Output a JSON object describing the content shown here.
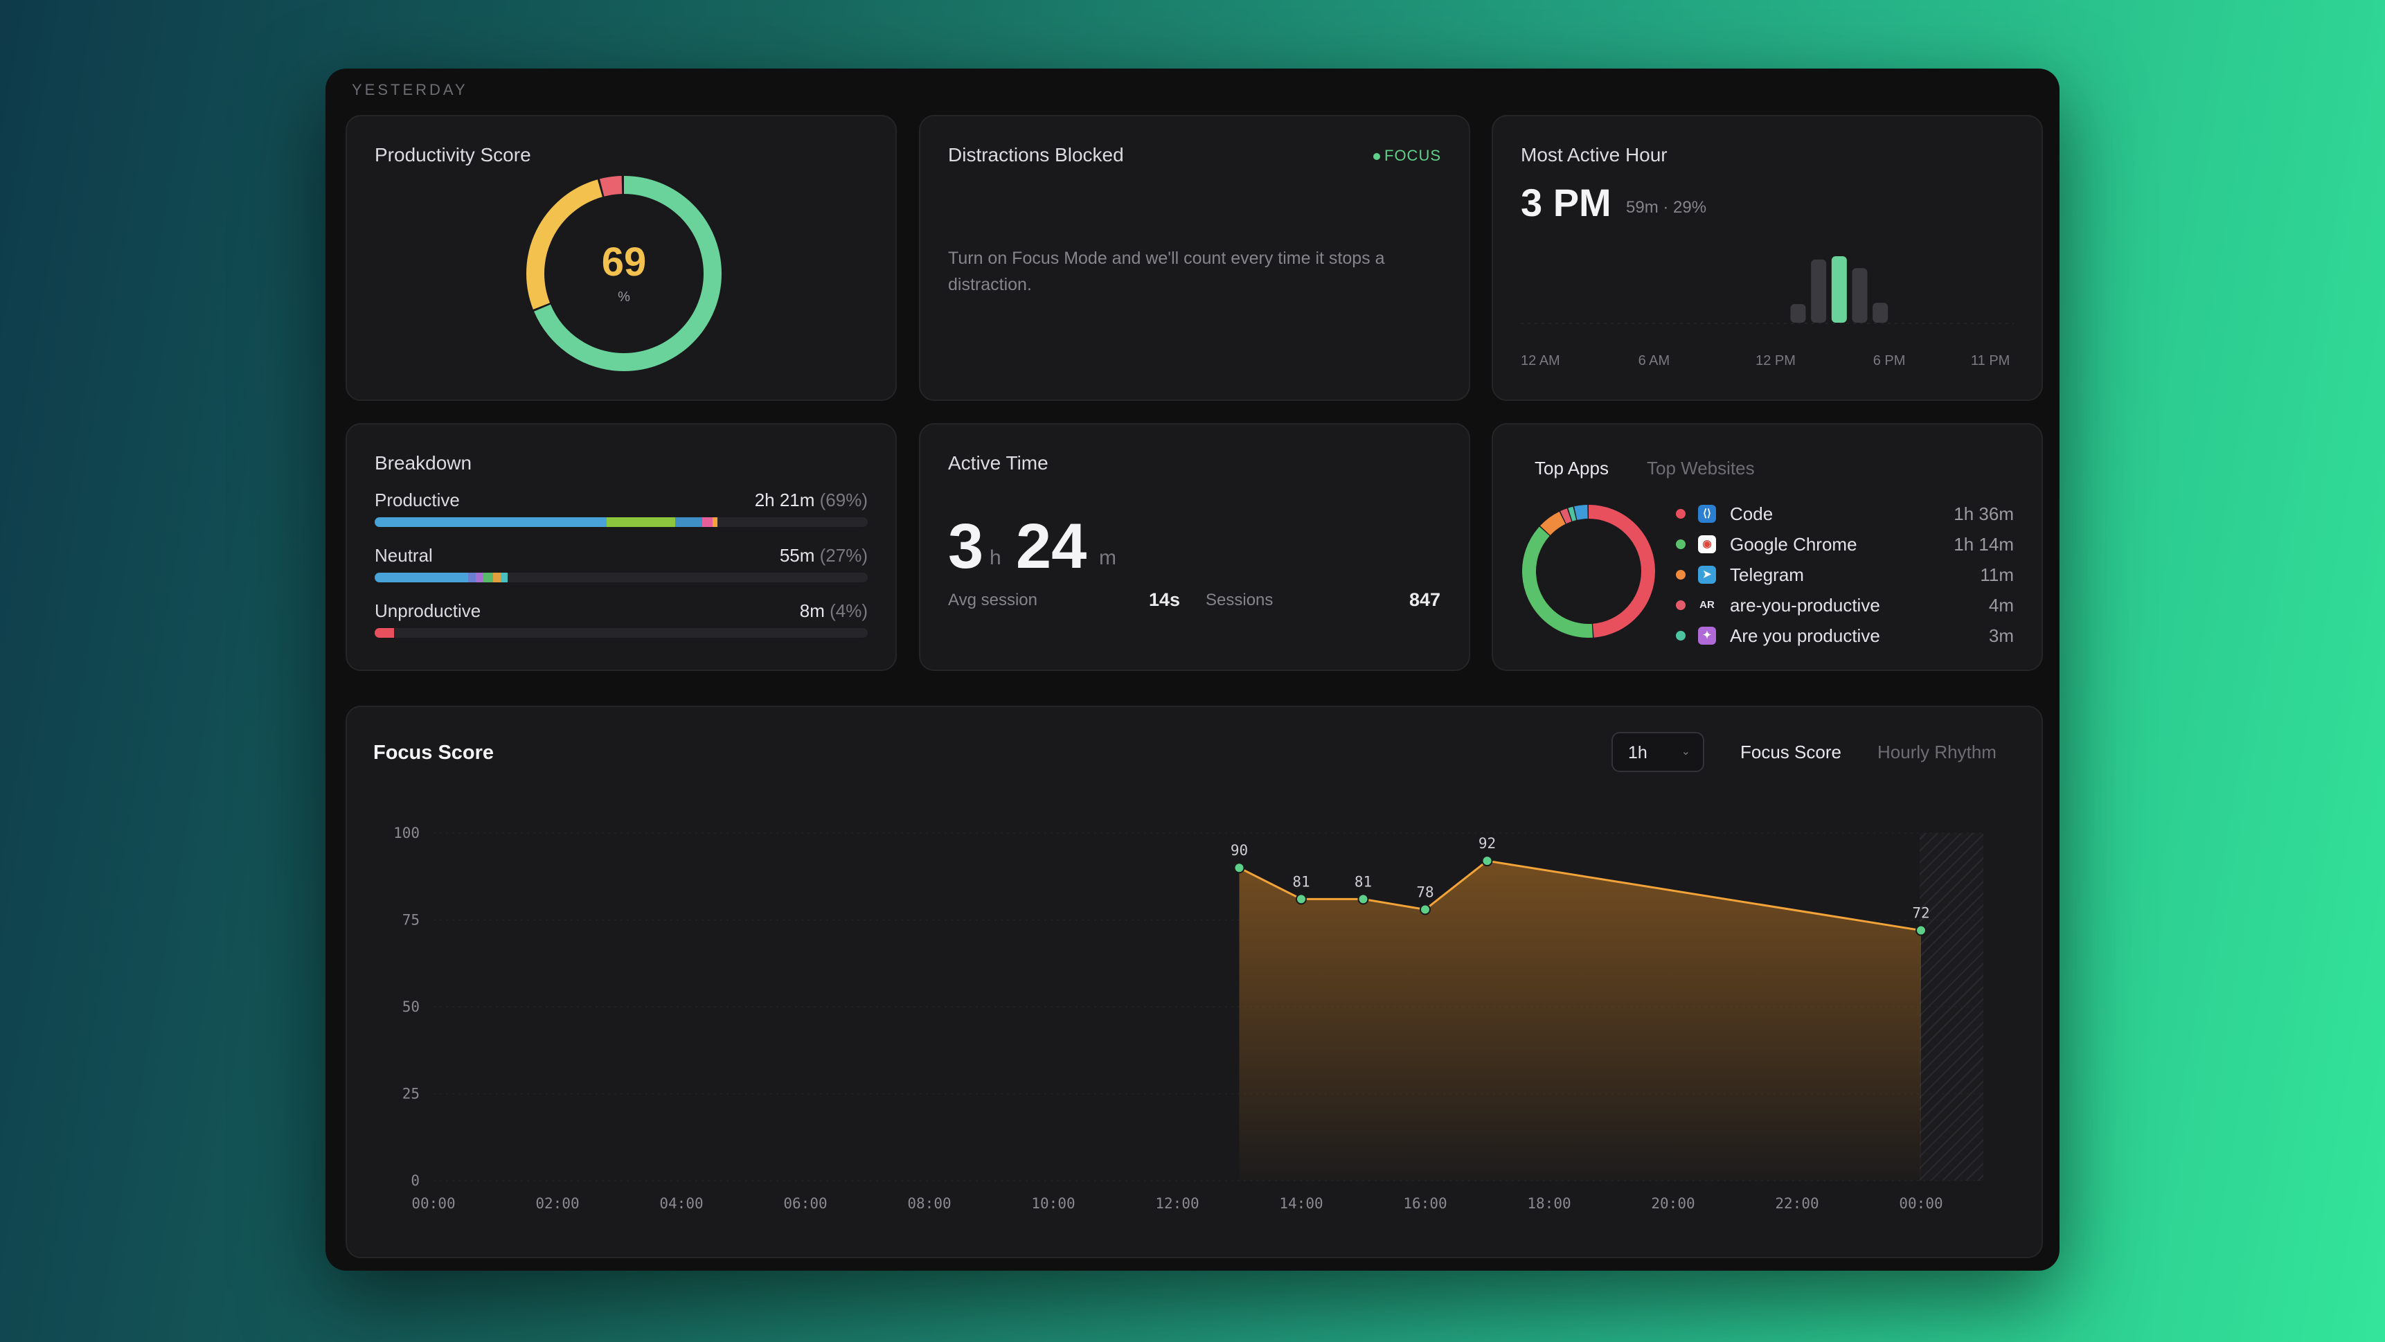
{
  "section_label": "YESTERDAY",
  "productivity": {
    "title": "Productivity Score",
    "score": "69",
    "unit": "%",
    "segments": [
      {
        "name": "productive",
        "fraction": 0.69,
        "color": "#6ad39b"
      },
      {
        "name": "neutral",
        "fraction": 0.27,
        "color": "#f2c14e"
      },
      {
        "name": "unproductive",
        "fraction": 0.04,
        "color": "#e8636e"
      }
    ]
  },
  "distractions": {
    "title": "Distractions Blocked",
    "badge": "FOCUS",
    "message": "Turn on Focus Mode and we'll count every time it stops a distraction."
  },
  "active_hour": {
    "title": "Most Active Hour",
    "hour": "3 PM",
    "detail": "59m · 29%",
    "bars": [
      {
        "hour": 13,
        "value": 0.28,
        "active": false
      },
      {
        "hour": 14,
        "value": 0.95,
        "active": false
      },
      {
        "hour": 15,
        "value": 1.0,
        "active": true
      },
      {
        "hour": 16,
        "value": 0.82,
        "active": false
      },
      {
        "hour": 17,
        "value": 0.3,
        "active": false
      }
    ],
    "axis": [
      "12 AM",
      "6 AM",
      "12 PM",
      "6 PM",
      "11 PM"
    ]
  },
  "breakdown": {
    "title": "Breakdown",
    "rows": [
      {
        "label": "Productive",
        "value": "2h 21m",
        "pct": "(69%)",
        "segments": [
          {
            "f": 0.47,
            "c": "#4aa3d8"
          },
          {
            "f": 0.14,
            "c": "#8cc63f"
          },
          {
            "f": 0.055,
            "c": "#3f8fc4"
          },
          {
            "f": 0.02,
            "c": "#e5609a"
          },
          {
            "f": 0.01,
            "c": "#f2a33a"
          }
        ]
      },
      {
        "label": "Neutral",
        "value": "55m",
        "pct": "(27%)",
        "segments": [
          {
            "f": 0.19,
            "c": "#4aa3d8"
          },
          {
            "f": 0.015,
            "c": "#6b7fd0"
          },
          {
            "f": 0.015,
            "c": "#a76fd0"
          },
          {
            "f": 0.02,
            "c": "#58b96a"
          },
          {
            "f": 0.015,
            "c": "#e0a040"
          },
          {
            "f": 0.015,
            "c": "#4ac0c0"
          }
        ]
      },
      {
        "label": "Unproductive",
        "value": "8m",
        "pct": "(4%)",
        "segments": [
          {
            "f": 0.04,
            "c": "#e8505e"
          }
        ]
      }
    ]
  },
  "active_time": {
    "title": "Active Time",
    "hours": "3",
    "hours_unit": "h",
    "minutes": "24",
    "minutes_unit": "m",
    "avg_session_label": "Avg session",
    "avg_session_value": "14s",
    "sessions_label": "Sessions",
    "sessions_value": "847"
  },
  "top_apps": {
    "tab_active": "Top Apps",
    "tab_inactive": "Top Websites",
    "donut": [
      {
        "name": "Code",
        "fraction": 0.49,
        "color": "#e8505e"
      },
      {
        "name": "Google Chrome",
        "fraction": 0.38,
        "color": "#59c26b"
      },
      {
        "name": "Telegram",
        "fraction": 0.06,
        "color": "#f08a3c"
      },
      {
        "name": "are-you-productive",
        "fraction": 0.02,
        "color": "#e45c6c"
      },
      {
        "name": "Are you productive",
        "fraction": 0.015,
        "color": "#4cc4a0"
      },
      {
        "name": "other",
        "fraction": 0.035,
        "color": "#3e9ad8"
      }
    ],
    "items": [
      {
        "name": "Code",
        "time": "1h 36m",
        "dot": "#e8505e",
        "icon": "vscode-icon",
        "icon_text": "⟨⟩",
        "icon_bg": "#2b7fd0",
        "icon_fg": "#ffffff"
      },
      {
        "name": "Google Chrome",
        "time": "1h 14m",
        "dot": "#59c26b",
        "icon": "chrome-icon",
        "icon_text": "◉",
        "icon_bg": "#ffffff",
        "icon_fg": "#e0443a"
      },
      {
        "name": "Telegram",
        "time": "11m",
        "dot": "#f08a3c",
        "icon": "telegram-icon",
        "icon_text": "➤",
        "icon_bg": "#3aa0dc",
        "icon_fg": "#ffffff"
      },
      {
        "name": "are-you-productive",
        "time": "4m",
        "dot": "#e45c6c",
        "icon": "ar-icon",
        "icon_text": "AR",
        "icon_bg": "#19191b",
        "icon_fg": "#e4e4e8"
      },
      {
        "name": "Are you productive",
        "time": "3m",
        "dot": "#4cc4a0",
        "icon": "app-icon",
        "icon_text": "✦",
        "icon_bg": "#b06ad8",
        "icon_fg": "#ffffff"
      }
    ]
  },
  "focus": {
    "title": "Focus Score",
    "interval": "1h",
    "tab_active": "Focus Score",
    "tab_inactive": "Hourly Rhythm"
  },
  "chart_data": {
    "type": "area",
    "title": "Focus Score",
    "xlabel": "",
    "ylabel": "",
    "ylim": [
      0,
      100
    ],
    "yticks": [
      0,
      25,
      50,
      75,
      100
    ],
    "xticks": [
      "00:00",
      "02:00",
      "04:00",
      "06:00",
      "08:00",
      "10:00",
      "12:00",
      "14:00",
      "16:00",
      "18:00",
      "20:00",
      "22:00",
      "00:00"
    ],
    "series": [
      {
        "points": [
          {
            "hour": 13,
            "value": 90
          },
          {
            "hour": 14,
            "value": 81
          },
          {
            "hour": 15,
            "value": 81
          },
          {
            "hour": 16,
            "value": 78
          },
          {
            "hour": 17,
            "value": 92
          },
          {
            "hour": 24,
            "value": 72
          }
        ]
      }
    ],
    "line_color": "#f2a33a"
  }
}
